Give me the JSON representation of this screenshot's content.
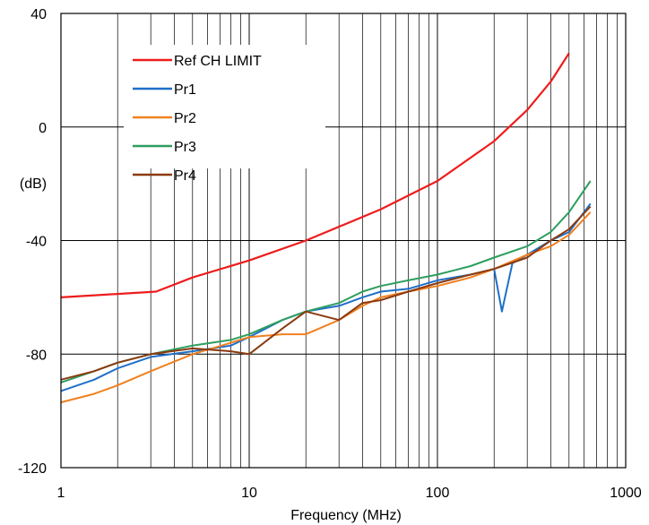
{
  "chart_data": {
    "type": "line",
    "title": "",
    "xlabel": "Frequency (MHz)",
    "ylabel": "(dB)",
    "x_scale": "log",
    "xlim": [
      1,
      1000
    ],
    "ylim": [
      -120,
      40
    ],
    "grid": true,
    "legend_position": "top-left",
    "x_tick_labels": [
      "1",
      "10",
      "100",
      "1000"
    ],
    "y_tick_labels": [
      "40",
      "0",
      "-40",
      "-80",
      "-120"
    ],
    "series": [
      {
        "name": "Ref CH LIMIT",
        "color": "#ee1c1c",
        "x": [
          1,
          3.2,
          5,
          10,
          20,
          50,
          100,
          200,
          300,
          400,
          500
        ],
        "y": [
          -60,
          -58,
          -53,
          -47,
          -40,
          -29,
          -19,
          -5,
          6,
          16,
          26
        ]
      },
      {
        "name": "Pr1",
        "color": "#1f6fc8",
        "x": [
          1,
          1.5,
          2,
          3,
          5,
          8,
          10,
          15,
          20,
          30,
          40,
          50,
          70,
          100,
          150,
          200,
          220,
          250,
          300,
          400,
          500,
          650
        ],
        "y": [
          -93,
          -89,
          -85,
          -81,
          -79,
          -77,
          -74,
          -68,
          -65,
          -63,
          -60,
          -58,
          -57,
          -54,
          -52,
          -50,
          -65,
          -48,
          -45,
          -40,
          -37,
          -27
        ]
      },
      {
        "name": "Pr2",
        "color": "#f08020",
        "x": [
          1,
          1.5,
          2,
          3,
          5,
          8,
          10,
          15,
          20,
          30,
          40,
          50,
          70,
          100,
          150,
          200,
          300,
          400,
          500,
          650
        ],
        "y": [
          -97,
          -94,
          -91,
          -86,
          -80,
          -76,
          -74,
          -73,
          -73,
          -68,
          -63,
          -60,
          -58,
          -56,
          -53,
          -50,
          -45,
          -42,
          -38,
          -30
        ]
      },
      {
        "name": "Pr3",
        "color": "#2e9e5f",
        "x": [
          1,
          1.5,
          2,
          3,
          5,
          8,
          10,
          15,
          20,
          30,
          40,
          50,
          70,
          100,
          150,
          200,
          300,
          400,
          500,
          650
        ],
        "y": [
          -90,
          -86,
          -83,
          -80,
          -77,
          -75,
          -73,
          -68,
          -65,
          -62,
          -58,
          -56,
          -54,
          -52,
          -49,
          -46,
          -42,
          -37,
          -30,
          -19
        ]
      },
      {
        "name": "Pr4",
        "color": "#8b3a0f",
        "x": [
          1,
          1.5,
          2,
          3,
          5,
          8,
          10,
          15,
          20,
          30,
          40,
          50,
          70,
          100,
          150,
          200,
          300,
          400,
          500,
          650
        ],
        "y": [
          -89,
          -86,
          -83,
          -80,
          -78,
          -79,
          -80,
          -71,
          -65,
          -68,
          -62,
          -61,
          -58,
          -55,
          -52,
          -50,
          -46,
          -40,
          -36,
          -28
        ]
      }
    ]
  }
}
